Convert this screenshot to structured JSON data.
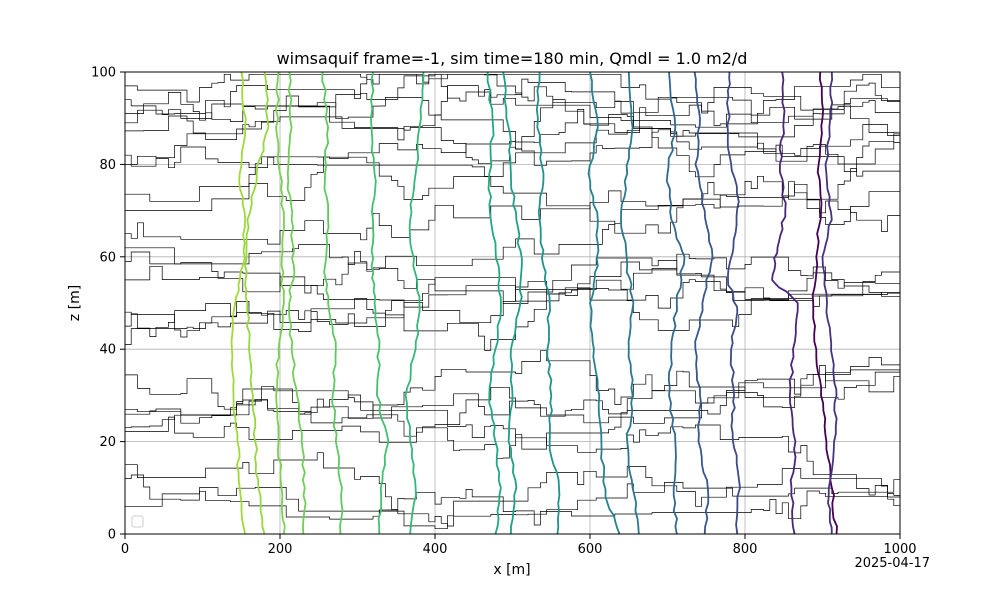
{
  "chart_data": {
    "type": "line",
    "title": "wimsaquif frame=-1, sim time=180 min, Qmdl = 1.0 m2/d",
    "xlabel": "x [m]",
    "ylabel": "z [m]",
    "xlim": [
      0,
      1000
    ],
    "ylim": [
      0,
      100
    ],
    "xticks": [
      "0",
      "200",
      "400",
      "600",
      "800",
      "1000"
    ],
    "yticks": [
      "0",
      "20",
      "40",
      "60",
      "80",
      "100"
    ],
    "grid": true,
    "legend": "lower-left, empty",
    "footer_date": "2025-04-17",
    "colors": {
      "axes": "#000000",
      "grid": "#b0b0b0",
      "streamlines": "#000000",
      "contour_colormap": "viridis"
    },
    "streamline_start_z": [
      6,
      12,
      15,
      19,
      23,
      27,
      28,
      36,
      41,
      45,
      48,
      55,
      59,
      62,
      65,
      70,
      74,
      80,
      82,
      86,
      89,
      91,
      94,
      97
    ],
    "contours": [
      {
        "level_index": 0,
        "color": "#440154",
        "points": [
          [
            918,
            0
          ],
          [
            912,
            10
          ],
          [
            905,
            20
          ],
          [
            898,
            30
          ],
          [
            892,
            40
          ],
          [
            888,
            50
          ],
          [
            892,
            60
          ],
          [
            898,
            70
          ],
          [
            895,
            80
          ],
          [
            900,
            90
          ],
          [
            897,
            100
          ]
        ]
      },
      {
        "level_index": 1,
        "color": "#46327e",
        "points": [
          [
            912,
            0
          ],
          [
            908,
            8
          ],
          [
            915,
            20
          ],
          [
            918,
            30
          ],
          [
            913,
            38
          ],
          [
            905,
            48
          ],
          [
            900,
            60
          ],
          [
            912,
            68
          ],
          [
            905,
            78
          ],
          [
            910,
            90
          ],
          [
            912,
            100
          ]
        ]
      },
      {
        "level_index": 2,
        "color": "#482677",
        "points": [
          [
            864,
            0
          ],
          [
            860,
            10
          ],
          [
            865,
            20
          ],
          [
            858,
            30
          ],
          [
            862,
            40
          ],
          [
            868,
            50
          ],
          [
            835,
            55
          ],
          [
            842,
            62
          ],
          [
            852,
            70
          ],
          [
            845,
            80
          ],
          [
            850,
            90
          ],
          [
            848,
            100
          ]
        ]
      },
      {
        "level_index": 3,
        "color": "#3e4989",
        "points": [
          [
            790,
            0
          ],
          [
            792,
            12
          ],
          [
            784,
            22
          ],
          [
            786,
            30
          ],
          [
            782,
            40
          ],
          [
            790,
            48
          ],
          [
            778,
            55
          ],
          [
            785,
            62
          ],
          [
            792,
            72
          ],
          [
            780,
            82
          ],
          [
            778,
            92
          ],
          [
            780,
            100
          ]
        ]
      },
      {
        "level_index": 4,
        "color": "#39568c",
        "points": [
          [
            748,
            0
          ],
          [
            752,
            10
          ],
          [
            740,
            20
          ],
          [
            742,
            30
          ],
          [
            736,
            40
          ],
          [
            745,
            50
          ],
          [
            758,
            60
          ],
          [
            748,
            70
          ],
          [
            736,
            80
          ],
          [
            742,
            90
          ],
          [
            735,
            100
          ]
        ]
      },
      {
        "level_index": 5,
        "color": "#31688e",
        "points": [
          [
            712,
            0
          ],
          [
            708,
            10
          ],
          [
            710,
            20
          ],
          [
            702,
            30
          ],
          [
            705,
            40
          ],
          [
            712,
            50
          ],
          [
            722,
            60
          ],
          [
            705,
            68
          ],
          [
            700,
            78
          ],
          [
            710,
            88
          ],
          [
            702,
            100
          ]
        ]
      },
      {
        "level_index": 6,
        "color": "#2a788e",
        "points": [
          [
            663,
            0
          ],
          [
            655,
            10
          ],
          [
            648,
            20
          ],
          [
            655,
            30
          ],
          [
            650,
            40
          ],
          [
            656,
            50
          ],
          [
            648,
            58
          ],
          [
            640,
            68
          ],
          [
            648,
            78
          ],
          [
            655,
            88
          ],
          [
            650,
            100
          ]
        ]
      },
      {
        "level_index": 7,
        "color": "#26828e",
        "points": [
          [
            638,
            0
          ],
          [
            620,
            8
          ],
          [
            615,
            18
          ],
          [
            612,
            30
          ],
          [
            605,
            40
          ],
          [
            600,
            50
          ],
          [
            610,
            58
          ],
          [
            610,
            68
          ],
          [
            598,
            78
          ],
          [
            610,
            88
          ],
          [
            600,
            100
          ]
        ]
      },
      {
        "level_index": 8,
        "color": "#21918c",
        "points": [
          [
            558,
            0
          ],
          [
            560,
            10
          ],
          [
            548,
            20
          ],
          [
            550,
            30
          ],
          [
            545,
            40
          ],
          [
            548,
            50
          ],
          [
            540,
            58
          ],
          [
            535,
            68
          ],
          [
            540,
            78
          ],
          [
            532,
            88
          ],
          [
            535,
            100
          ]
        ]
      },
      {
        "level_index": 9,
        "color": "#1f9e89",
        "points": [
          [
            498,
            0
          ],
          [
            505,
            10
          ],
          [
            495,
            20
          ],
          [
            500,
            30
          ],
          [
            498,
            40
          ],
          [
            510,
            50
          ],
          [
            512,
            58
          ],
          [
            505,
            68
          ],
          [
            498,
            78
          ],
          [
            495,
            88
          ],
          [
            488,
            100
          ]
        ]
      },
      {
        "level_index": 10,
        "color": "#22a884",
        "points": [
          [
            478,
            0
          ],
          [
            485,
            10
          ],
          [
            478,
            20
          ],
          [
            470,
            30
          ],
          [
            478,
            40
          ],
          [
            485,
            50
          ],
          [
            482,
            58
          ],
          [
            472,
            68
          ],
          [
            470,
            78
          ],
          [
            475,
            88
          ],
          [
            468,
            100
          ]
        ]
      },
      {
        "level_index": 11,
        "color": "#35b779",
        "points": [
          [
            368,
            0
          ],
          [
            375,
            10
          ],
          [
            368,
            20
          ],
          [
            362,
            30
          ],
          [
            375,
            40
          ],
          [
            380,
            50
          ],
          [
            372,
            58
          ],
          [
            368,
            68
          ],
          [
            375,
            78
          ],
          [
            380,
            88
          ],
          [
            385,
            100
          ]
        ]
      },
      {
        "level_index": 12,
        "color": "#44bf70",
        "points": [
          [
            328,
            0
          ],
          [
            330,
            10
          ],
          [
            340,
            20
          ],
          [
            325,
            30
          ],
          [
            328,
            40
          ],
          [
            322,
            50
          ],
          [
            318,
            58
          ],
          [
            320,
            68
          ],
          [
            322,
            78
          ],
          [
            318,
            88
          ],
          [
            320,
            100
          ]
        ]
      },
      {
        "level_index": 13,
        "color": "#5ec962",
        "points": [
          [
            278,
            0
          ],
          [
            280,
            10
          ],
          [
            272,
            20
          ],
          [
            268,
            30
          ],
          [
            272,
            40
          ],
          [
            262,
            50
          ],
          [
            258,
            58
          ],
          [
            262,
            68
          ],
          [
            258,
            78
          ],
          [
            262,
            88
          ],
          [
            255,
            100
          ]
        ]
      },
      {
        "level_index": 14,
        "color": "#6ece58",
        "points": [
          [
            230,
            0
          ],
          [
            232,
            10
          ],
          [
            228,
            20
          ],
          [
            222,
            30
          ],
          [
            215,
            40
          ],
          [
            212,
            50
          ],
          [
            218,
            58
          ],
          [
            215,
            68
          ],
          [
            210,
            78
          ],
          [
            215,
            88
          ],
          [
            212,
            100
          ]
        ]
      },
      {
        "level_index": 15,
        "color": "#7ad151",
        "points": [
          [
            205,
            0
          ],
          [
            202,
            10
          ],
          [
            198,
            20
          ],
          [
            195,
            30
          ],
          [
            198,
            40
          ],
          [
            205,
            50
          ],
          [
            202,
            58
          ],
          [
            205,
            68
          ],
          [
            200,
            78
          ],
          [
            195,
            88
          ],
          [
            198,
            100
          ]
        ]
      },
      {
        "level_index": 16,
        "color": "#95d840",
        "points": [
          [
            180,
            0
          ],
          [
            172,
            10
          ],
          [
            168,
            20
          ],
          [
            165,
            30
          ],
          [
            160,
            40
          ],
          [
            158,
            50
          ],
          [
            155,
            58
          ],
          [
            158,
            68
          ],
          [
            170,
            78
          ],
          [
            185,
            88
          ],
          [
            180,
            100
          ]
        ]
      },
      {
        "level_index": 17,
        "color": "#a0da39",
        "points": [
          [
            155,
            0
          ],
          [
            148,
            10
          ],
          [
            145,
            20
          ],
          [
            140,
            30
          ],
          [
            138,
            40
          ],
          [
            142,
            50
          ],
          [
            152,
            58
          ],
          [
            155,
            68
          ],
          [
            148,
            78
          ],
          [
            155,
            88
          ],
          [
            150,
            100
          ]
        ]
      }
    ]
  }
}
